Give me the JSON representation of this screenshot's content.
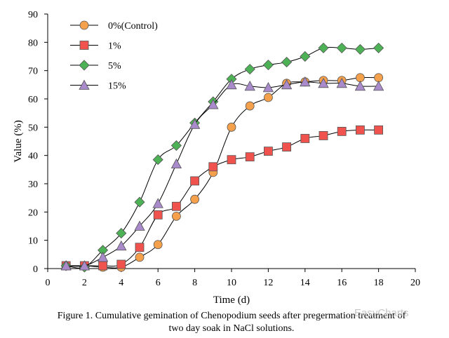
{
  "chart_data": {
    "type": "line",
    "xlabel": "Time (d)",
    "ylabel": "Value (%)",
    "xlim": [
      0,
      20
    ],
    "ylim": [
      0,
      90
    ],
    "xticks": [
      0,
      2,
      4,
      6,
      8,
      10,
      12,
      14,
      16,
      18,
      20
    ],
    "yticks": [
      0,
      10,
      20,
      30,
      40,
      50,
      60,
      70,
      80,
      90
    ],
    "grid": false,
    "legend_position": "top-left",
    "series": [
      {
        "name": "0%(Control)",
        "marker": "circle",
        "color": "#F5A04B",
        "x": [
          1,
          2,
          3,
          4,
          5,
          6,
          7,
          8,
          9,
          10,
          11,
          12,
          13,
          14,
          15,
          16,
          17,
          18
        ],
        "y": [
          1,
          1,
          0.5,
          0.5,
          4,
          8.5,
          18.5,
          24.5,
          34,
          50,
          57.5,
          60.5,
          65.5,
          66,
          66.5,
          66.5,
          67.5,
          67.5
        ]
      },
      {
        "name": "1%",
        "marker": "square",
        "color": "#F0524E",
        "x": [
          1,
          2,
          3,
          4,
          5,
          6,
          7,
          8,
          9,
          10,
          11,
          12,
          13,
          14,
          15,
          16,
          17,
          18
        ],
        "y": [
          1,
          1,
          1,
          1.5,
          7.5,
          19,
          22,
          31,
          36,
          38.5,
          39.5,
          41.5,
          43,
          46,
          47,
          48.5,
          49,
          49
        ]
      },
      {
        "name": "5%",
        "marker": "diamond",
        "color": "#4DB256",
        "x": [
          1,
          2,
          3,
          4,
          5,
          6,
          7,
          8,
          9,
          10,
          11,
          12,
          13,
          14,
          15,
          16,
          17,
          18
        ],
        "y": [
          1,
          0.5,
          6.5,
          12.5,
          23.5,
          38.5,
          43.5,
          51.5,
          59,
          67,
          70.5,
          72,
          73,
          75,
          78,
          78,
          77.5,
          78
        ]
      },
      {
        "name": "15%",
        "marker": "triangle",
        "color": "#A98ACB",
        "x": [
          1,
          2,
          3,
          4,
          5,
          6,
          7,
          8,
          9,
          10,
          11,
          12,
          13,
          14,
          15,
          16,
          17,
          18
        ],
        "y": [
          1,
          1,
          4,
          8,
          15,
          23,
          37,
          51,
          58,
          65,
          64.5,
          64,
          65,
          66,
          65.5,
          65.5,
          64.5,
          64.5
        ]
      }
    ]
  },
  "caption": {
    "line1": "Figure 1. Cumulative gemination of Chenopodium seeds after pregerm",
    "line1_end": "ation treatment of",
    "line2": "two day soak in NaCl solutions."
  },
  "watermark": "EasyCharts"
}
